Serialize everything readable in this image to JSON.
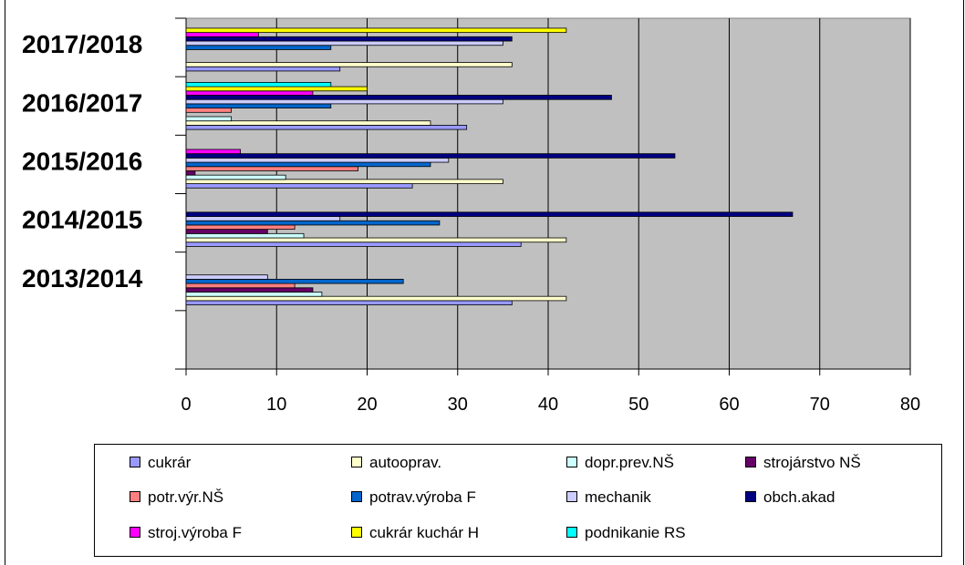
{
  "chart_data": {
    "type": "bar",
    "orientation": "horizontal",
    "categories": [
      "2013/2014",
      "2014/2015",
      "2015/2016",
      "2016/2017",
      "2017/2018"
    ],
    "xlim": [
      0,
      80
    ],
    "x_ticks": [
      "0",
      "10",
      "20",
      "30",
      "40",
      "50",
      "60",
      "70",
      "80"
    ],
    "grid": true,
    "legend_position": "bottom",
    "series": [
      {
        "name": "cukrár",
        "color": "#9999FF",
        "values": [
          36,
          37,
          25,
          31,
          17
        ]
      },
      {
        "name": "autooprav.",
        "color": "#FFFFCC",
        "values": [
          42,
          42,
          35,
          27,
          36
        ]
      },
      {
        "name": "dopr.prev.NŠ",
        "color": "#CCFFFF",
        "values": [
          15,
          13,
          11,
          5,
          0
        ]
      },
      {
        "name": "strojárstvo NŠ",
        "color": "#660066",
        "values": [
          14,
          9,
          1,
          0,
          0
        ]
      },
      {
        "name": "potr.výr.NŠ",
        "color": "#FF8080",
        "values": [
          12,
          12,
          19,
          5,
          0
        ]
      },
      {
        "name": "potrav.výroba F",
        "color": "#0066CC",
        "values": [
          24,
          28,
          27,
          16,
          16
        ]
      },
      {
        "name": "mechanik",
        "color": "#CCCCFF",
        "values": [
          9,
          17,
          29,
          35,
          35
        ]
      },
      {
        "name": "obch.akad",
        "color": "#000080",
        "values": [
          0,
          67,
          54,
          47,
          36
        ]
      },
      {
        "name": "stroj.výroba F",
        "color": "#FF00FF",
        "values": [
          0,
          0,
          6,
          14,
          8
        ]
      },
      {
        "name": "cukrár kuchár H",
        "color": "#FFFF00",
        "values": [
          0,
          0,
          0,
          20,
          42
        ]
      },
      {
        "name": "podnikanie RS",
        "color": "#00FFFF",
        "values": [
          0,
          0,
          0,
          16,
          0
        ]
      }
    ]
  }
}
